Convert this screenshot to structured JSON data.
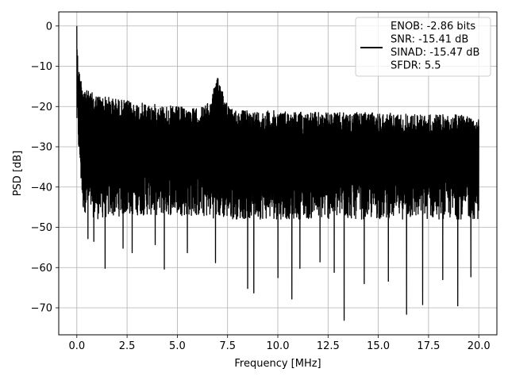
{
  "chart_data": {
    "type": "line",
    "title": "",
    "xlabel": "Frequency [MHz]",
    "ylabel": "PSD [dB]",
    "xlim": [
      -0.9,
      20.9
    ],
    "ylim": [
      -76.7,
      3.5
    ],
    "xticks": [
      0.0,
      2.5,
      5.0,
      7.5,
      10.0,
      12.5,
      15.0,
      17.5,
      20.0
    ],
    "xtick_labels": [
      "0.0",
      "2.5",
      "5.0",
      "7.5",
      "10.0",
      "12.5",
      "15.0",
      "17.5",
      "20.0"
    ],
    "yticks": [
      0,
      -10,
      -20,
      -30,
      -40,
      -50,
      -60,
      -70
    ],
    "ytick_labels": [
      "0",
      "−10",
      "−20",
      "−30",
      "−40",
      "−50",
      "−60",
      "−70"
    ],
    "grid": true,
    "legend_position": "top-right",
    "line_color": "#000000",
    "series": [
      {
        "name": "ENOB: -2.86 bits\nSNR: -15.41 dB\nSINAD: -15.47 dB\nSFDR: 5.5",
        "envelope_upper": [
          [
            0.0,
            0
          ],
          [
            0.05,
            -8
          ],
          [
            0.15,
            -12
          ],
          [
            0.3,
            -14
          ],
          [
            0.5,
            -16
          ],
          [
            1.0,
            -17
          ],
          [
            2.0,
            -18
          ],
          [
            3.0,
            -19
          ],
          [
            4.0,
            -19.5
          ],
          [
            5.0,
            -20
          ],
          [
            6.0,
            -20.5
          ],
          [
            6.6,
            -19
          ],
          [
            6.9,
            -14
          ],
          [
            7.05,
            -12.5
          ],
          [
            7.3,
            -16
          ],
          [
            7.6,
            -20.5
          ],
          [
            8.5,
            -21
          ],
          [
            10.0,
            -21
          ],
          [
            12.5,
            -21.5
          ],
          [
            15.0,
            -21.5
          ],
          [
            17.5,
            -22
          ],
          [
            20.0,
            -22
          ]
        ],
        "envelope_lower": [
          [
            0.0,
            -26
          ],
          [
            0.3,
            -46
          ],
          [
            1.0,
            -48
          ],
          [
            2.5,
            -47
          ],
          [
            5.0,
            -47
          ],
          [
            7.5,
            -48
          ],
          [
            10.0,
            -48
          ],
          [
            12.5,
            -48
          ],
          [
            15.0,
            -48
          ],
          [
            17.5,
            -48
          ],
          [
            20.0,
            -48
          ]
        ],
        "deep_dips": [
          [
            0.55,
            -52.8
          ],
          [
            0.85,
            -53.5
          ],
          [
            1.4,
            -60.2
          ],
          [
            2.3,
            -55.2
          ],
          [
            2.75,
            -56.3
          ],
          [
            3.9,
            -54.3
          ],
          [
            4.35,
            -60.4
          ],
          [
            5.5,
            -56.3
          ],
          [
            6.9,
            -58.8
          ],
          [
            8.5,
            -65.2
          ],
          [
            8.8,
            -66.3
          ],
          [
            10.0,
            -62.5
          ],
          [
            10.7,
            -67.8
          ],
          [
            11.1,
            -60.2
          ],
          [
            12.1,
            -58.6
          ],
          [
            12.8,
            -61.2
          ],
          [
            13.3,
            -73.1
          ],
          [
            14.3,
            -64.0
          ],
          [
            15.5,
            -63.4
          ],
          [
            16.4,
            -71.6
          ],
          [
            17.2,
            -69.2
          ],
          [
            18.2,
            -63.0
          ],
          [
            18.95,
            -69.5
          ],
          [
            19.6,
            -62.3
          ]
        ],
        "noise_floor_mean": -30
      }
    ]
  }
}
